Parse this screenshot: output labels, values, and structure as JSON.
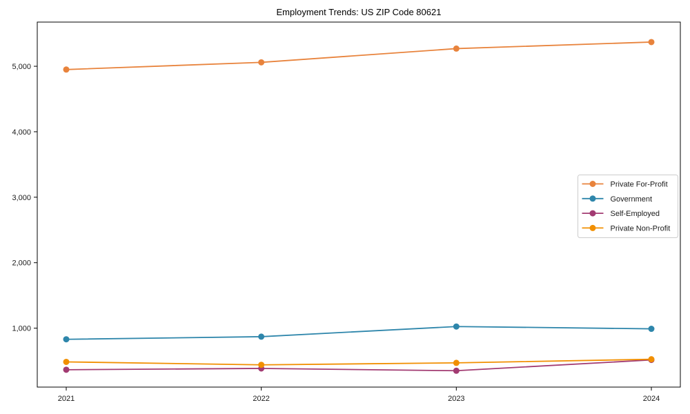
{
  "title": "Employment Trends: US ZIP Code 80621",
  "chart_data": {
    "type": "line",
    "title": "Employment Trends: US ZIP Code 80621",
    "xlabel": "",
    "ylabel": "",
    "categories": [
      "2021",
      "2022",
      "2023",
      "2024"
    ],
    "series": [
      {
        "name": "Private For-Profit",
        "color": "#e8833c",
        "values": [
          4950,
          5060,
          5270,
          5370
        ]
      },
      {
        "name": "Government",
        "color": "#2e86ab",
        "values": [
          830,
          870,
          1025,
          990
        ]
      },
      {
        "name": "Self-Employed",
        "color": "#a23b72",
        "values": [
          365,
          385,
          350,
          515
        ]
      },
      {
        "name": "Private Non-Profit",
        "color": "#f18f01",
        "values": [
          485,
          440,
          470,
          525
        ]
      }
    ],
    "ylim": [
      100,
      5675
    ],
    "yticks": [
      1000,
      2000,
      3000,
      4000,
      5000
    ],
    "ytick_labels": [
      "1,000",
      "2,000",
      "3,000",
      "4,000",
      "5,000"
    ],
    "grid": false,
    "legend_position": "center-right",
    "marker": "circle",
    "axis_color": "#000000",
    "tick_label_color": "#1a1a1a",
    "legend_border_color": "#cccccc",
    "background_color": "#ffffff"
  }
}
